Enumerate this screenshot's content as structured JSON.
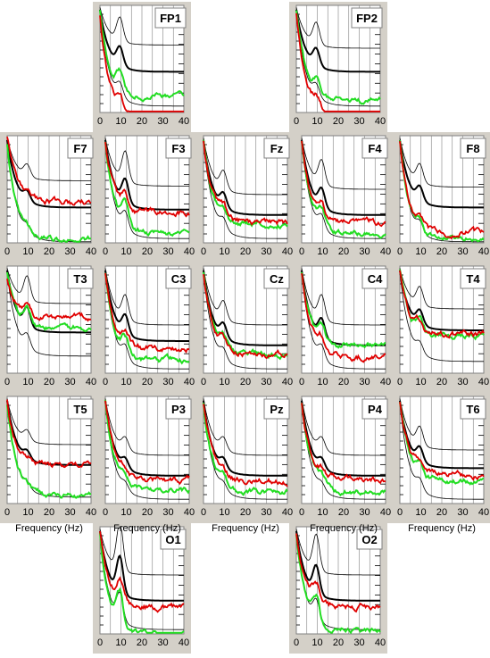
{
  "figure": {
    "x_axis_label": "Frequency (Hz)",
    "x_ticks": [
      0,
      10,
      20,
      30,
      40
    ],
    "colors": {
      "panel_background": "#d4d0c8",
      "plot_background": "#ffffff",
      "grid": "#808080",
      "mean": "#000000",
      "bounds": "#000000",
      "red_trace": "#e00000",
      "green_trace": "#22dd22"
    }
  },
  "chart_data": {
    "type": "line",
    "x_range": [
      0,
      40
    ],
    "grid": true,
    "channels": [
      {
        "name": "FP1",
        "mean_plateau": 0.6,
        "upper_plateau": 0.37,
        "lower_plateau": 0.9,
        "alpha_peak": 0.2,
        "red_level": 0.98,
        "green_level": 0.82,
        "red_offset": 0.06,
        "green_offset": 0.02
      },
      {
        "name": "FP2",
        "mean_plateau": 0.6,
        "upper_plateau": 0.4,
        "lower_plateau": 0.9,
        "alpha_peak": 0.18,
        "red_level": 0.98,
        "green_level": 0.85,
        "red_offset": 0.06,
        "green_offset": 0.04
      },
      {
        "name": "F7",
        "mean_plateau": 0.65,
        "upper_plateau": 0.42,
        "lower_plateau": 0.95,
        "alpha_peak": 0.1,
        "red_level": 0.62,
        "green_level": 0.92,
        "red_offset": 0.0,
        "green_offset": 0.05
      },
      {
        "name": "F3",
        "mean_plateau": 0.67,
        "upper_plateau": 0.47,
        "lower_plateau": 0.92,
        "alpha_peak": 0.25,
        "red_level": 0.7,
        "green_level": 0.88,
        "red_offset": 0.02,
        "green_offset": 0.03
      },
      {
        "name": "Fz",
        "mean_plateau": 0.72,
        "upper_plateau": 0.55,
        "lower_plateau": 0.92,
        "alpha_peak": 0.15,
        "red_level": 0.78,
        "green_level": 0.8,
        "red_offset": 0.03,
        "green_offset": 0.03
      },
      {
        "name": "F4",
        "mean_plateau": 0.72,
        "upper_plateau": 0.5,
        "lower_plateau": 0.92,
        "alpha_peak": 0.2,
        "red_level": 0.78,
        "green_level": 0.88,
        "red_offset": 0.03,
        "green_offset": 0.04
      },
      {
        "name": "F8",
        "mean_plateau": 0.65,
        "upper_plateau": 0.48,
        "lower_plateau": 0.95,
        "alpha_peak": 0.15,
        "red_level": 0.88,
        "green_level": 0.92,
        "red_offset": 0.03,
        "green_offset": 0.03
      },
      {
        "name": "T3",
        "mean_plateau": 0.6,
        "upper_plateau": 0.35,
        "lower_plateau": 0.8,
        "alpha_peak": 0.2,
        "red_level": 0.4,
        "green_level": 0.55,
        "red_offset": 0.08,
        "green_offset": 0.03
      },
      {
        "name": "C3",
        "mean_plateau": 0.68,
        "upper_plateau": 0.55,
        "lower_plateau": 0.92,
        "alpha_peak": 0.2,
        "red_level": 0.72,
        "green_level": 0.85,
        "red_offset": 0.06,
        "green_offset": 0.03
      },
      {
        "name": "Cz",
        "mean_plateau": 0.72,
        "upper_plateau": 0.55,
        "lower_plateau": 0.92,
        "alpha_peak": 0.15,
        "red_level": 0.78,
        "green_level": 0.78,
        "red_offset": 0.05,
        "green_offset": 0.04
      },
      {
        "name": "C4",
        "mean_plateau": 0.72,
        "upper_plateau": 0.55,
        "lower_plateau": 0.92,
        "alpha_peak": 0.2,
        "red_level": 0.8,
        "green_level": 0.7,
        "red_offset": 0.04,
        "green_offset": 0.04
      },
      {
        "name": "T4",
        "mean_plateau": 0.58,
        "upper_plateau": 0.4,
        "lower_plateau": 0.85,
        "alpha_peak": 0.15,
        "red_level": 0.62,
        "green_level": 0.64,
        "red_offset": 0.02,
        "green_offset": 0.02
      },
      {
        "name": "T5",
        "mean_plateau": 0.62,
        "upper_plateau": 0.45,
        "lower_plateau": 0.9,
        "alpha_peak": 0.08,
        "red_level": 0.62,
        "green_level": 0.88,
        "red_offset": 0.03,
        "green_offset": 0.05
      },
      {
        "name": "P3",
        "mean_plateau": 0.72,
        "upper_plateau": 0.55,
        "lower_plateau": 0.92,
        "alpha_peak": 0.1,
        "red_level": 0.75,
        "green_level": 0.85,
        "red_offset": 0.03,
        "green_offset": 0.03
      },
      {
        "name": "Pz",
        "mean_plateau": 0.72,
        "upper_plateau": 0.55,
        "lower_plateau": 0.92,
        "alpha_peak": 0.1,
        "red_level": 0.75,
        "green_level": 0.85,
        "red_offset": 0.04,
        "green_offset": 0.04
      },
      {
        "name": "P4",
        "mean_plateau": 0.72,
        "upper_plateau": 0.55,
        "lower_plateau": 0.92,
        "alpha_peak": 0.1,
        "red_level": 0.75,
        "green_level": 0.85,
        "red_offset": 0.03,
        "green_offset": 0.04
      },
      {
        "name": "T6",
        "mean_plateau": 0.65,
        "upper_plateau": 0.5,
        "lower_plateau": 0.92,
        "alpha_peak": 0.15,
        "red_level": 0.7,
        "green_level": 0.75,
        "red_offset": 0.03,
        "green_offset": 0.04
      },
      {
        "name": "O1",
        "mean_plateau": 0.67,
        "upper_plateau": 0.45,
        "lower_plateau": 0.92,
        "alpha_peak": 0.4,
        "red_level": 0.72,
        "green_level": 0.95,
        "red_offset": 0.03,
        "green_offset": 0.05
      },
      {
        "name": "O2",
        "mean_plateau": 0.67,
        "upper_plateau": 0.45,
        "lower_plateau": 0.92,
        "alpha_peak": 0.3,
        "red_level": 0.72,
        "green_level": 0.92,
        "red_offset": 0.03,
        "green_offset": 0.05
      }
    ]
  }
}
